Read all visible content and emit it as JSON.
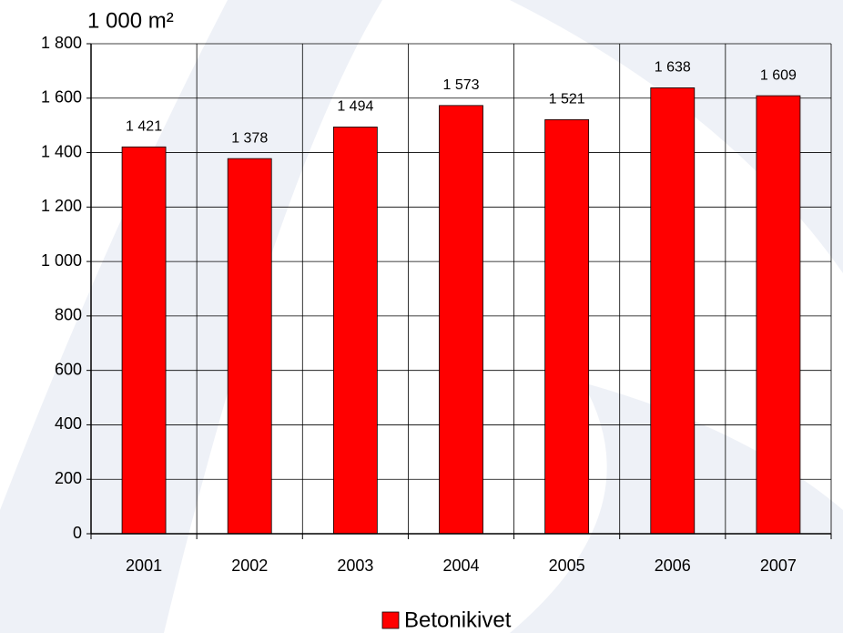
{
  "chart_data": {
    "type": "bar",
    "y_axis_label": "1 000 m²",
    "categories": [
      "2001",
      "2002",
      "2003",
      "2004",
      "2005",
      "2006",
      "2007"
    ],
    "series": [
      {
        "name": "Betonikivet",
        "color": "#ff0000",
        "values": [
          1421,
          1378,
          1494,
          1573,
          1521,
          1638,
          1609
        ],
        "value_labels": [
          "1 421",
          "1 378",
          "1 494",
          "1 573",
          "1 521",
          "1 638",
          "1 609"
        ]
      }
    ],
    "ylim": [
      0,
      1800
    ],
    "yticks": [
      0,
      200,
      400,
      600,
      800,
      {
        "value": 1000,
        "label": "1 000"
      },
      {
        "value": 1200,
        "label": "1 200"
      },
      {
        "value": 1400,
        "label": "1 400"
      },
      {
        "value": 1600,
        "label": "1 600"
      },
      {
        "value": 1800,
        "label": "1 800"
      }
    ],
    "grid": true,
    "legend": "bottom"
  }
}
